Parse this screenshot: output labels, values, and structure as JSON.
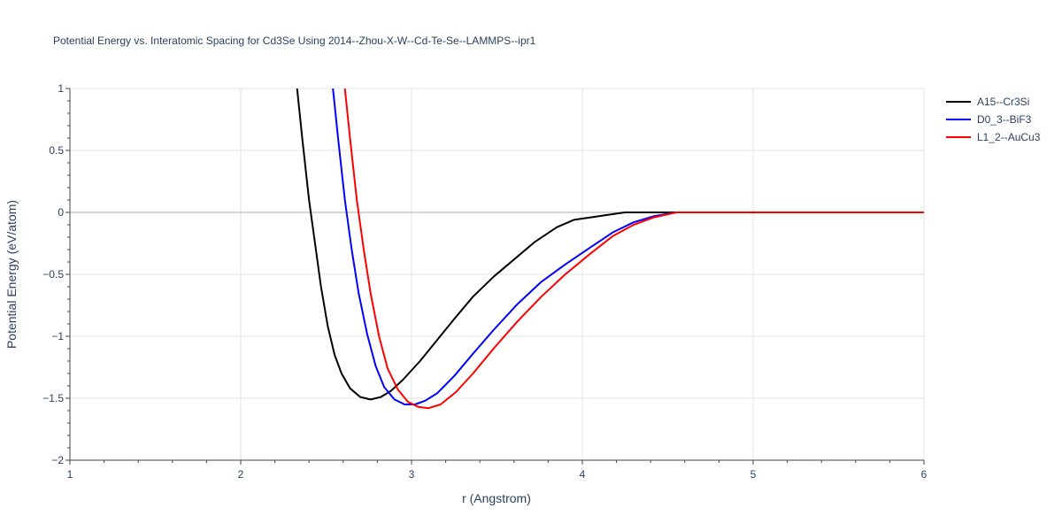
{
  "chart_data": {
    "type": "line",
    "title": "Potential Energy vs. Interatomic Spacing for Cd3Se Using 2014--Zhou-X-W--Cd-Te-Se--LAMMPS--ipr1",
    "xlabel": "r (Angstrom)",
    "ylabel": "Potential Energy (eV/atom)",
    "xlim": [
      1,
      6
    ],
    "ylim": [
      -2,
      1
    ],
    "x_ticks": [
      "1",
      "2",
      "3",
      "4",
      "5",
      "6"
    ],
    "y_ticks": [
      "1",
      "0.5",
      "0",
      "−0.5",
      "−1",
      "−1.5",
      "−2"
    ],
    "x_tick_values": [
      1,
      2,
      3,
      4,
      5,
      6
    ],
    "y_tick_values": [
      1,
      0.5,
      0,
      -0.5,
      -1,
      -1.5,
      -2
    ],
    "grid": true,
    "legend_position": "top-right",
    "series": [
      {
        "name": "A15--Cr3Si",
        "color": "#000000",
        "x": [
          2.33,
          2.36,
          2.4,
          2.43,
          2.47,
          2.51,
          2.55,
          2.59,
          2.64,
          2.7,
          2.76,
          2.82,
          2.88,
          2.95,
          3.05,
          3.15,
          3.25,
          3.36,
          3.48,
          3.6,
          3.72,
          3.85,
          3.95,
          4.05,
          4.15,
          4.25,
          4.35,
          4.45,
          4.55,
          5.0,
          5.5,
          6.0
        ],
        "y": [
          1.0,
          0.6,
          0.1,
          -0.2,
          -0.6,
          -0.92,
          -1.15,
          -1.3,
          -1.42,
          -1.49,
          -1.51,
          -1.49,
          -1.44,
          -1.35,
          -1.2,
          -1.03,
          -0.86,
          -0.68,
          -0.52,
          -0.38,
          -0.24,
          -0.12,
          -0.06,
          -0.04,
          -0.02,
          0.0,
          0.0,
          0.0,
          0.0,
          0.0,
          0.0,
          0.0
        ]
      },
      {
        "name": "D0_3--BiF3",
        "color": "#0000ff",
        "x": [
          2.54,
          2.57,
          2.61,
          2.65,
          2.69,
          2.74,
          2.79,
          2.84,
          2.9,
          2.96,
          3.02,
          3.08,
          3.15,
          3.25,
          3.36,
          3.48,
          3.62,
          3.76,
          3.9,
          4.05,
          4.18,
          4.3,
          4.42,
          4.55,
          5.0,
          5.5,
          6.0
        ],
        "y": [
          1.0,
          0.6,
          0.1,
          -0.3,
          -0.65,
          -0.98,
          -1.24,
          -1.41,
          -1.51,
          -1.55,
          -1.55,
          -1.52,
          -1.46,
          -1.32,
          -1.14,
          -0.95,
          -0.74,
          -0.56,
          -0.42,
          -0.28,
          -0.16,
          -0.08,
          -0.03,
          0.0,
          0.0,
          0.0,
          0.0
        ]
      },
      {
        "name": "L1_2--AuCu3",
        "color": "#ff0000",
        "x": [
          2.61,
          2.64,
          2.68,
          2.72,
          2.76,
          2.81,
          2.86,
          2.92,
          2.98,
          3.04,
          3.1,
          3.17,
          3.26,
          3.36,
          3.48,
          3.62,
          3.76,
          3.9,
          4.05,
          4.18,
          4.3,
          4.42,
          4.55,
          5.0,
          5.5,
          6.0
        ],
        "y": [
          1.0,
          0.6,
          0.1,
          -0.3,
          -0.65,
          -1.0,
          -1.26,
          -1.43,
          -1.53,
          -1.57,
          -1.58,
          -1.55,
          -1.45,
          -1.3,
          -1.1,
          -0.88,
          -0.68,
          -0.5,
          -0.33,
          -0.19,
          -0.1,
          -0.04,
          0.0,
          0.0,
          0.0,
          0.0
        ]
      }
    ]
  }
}
